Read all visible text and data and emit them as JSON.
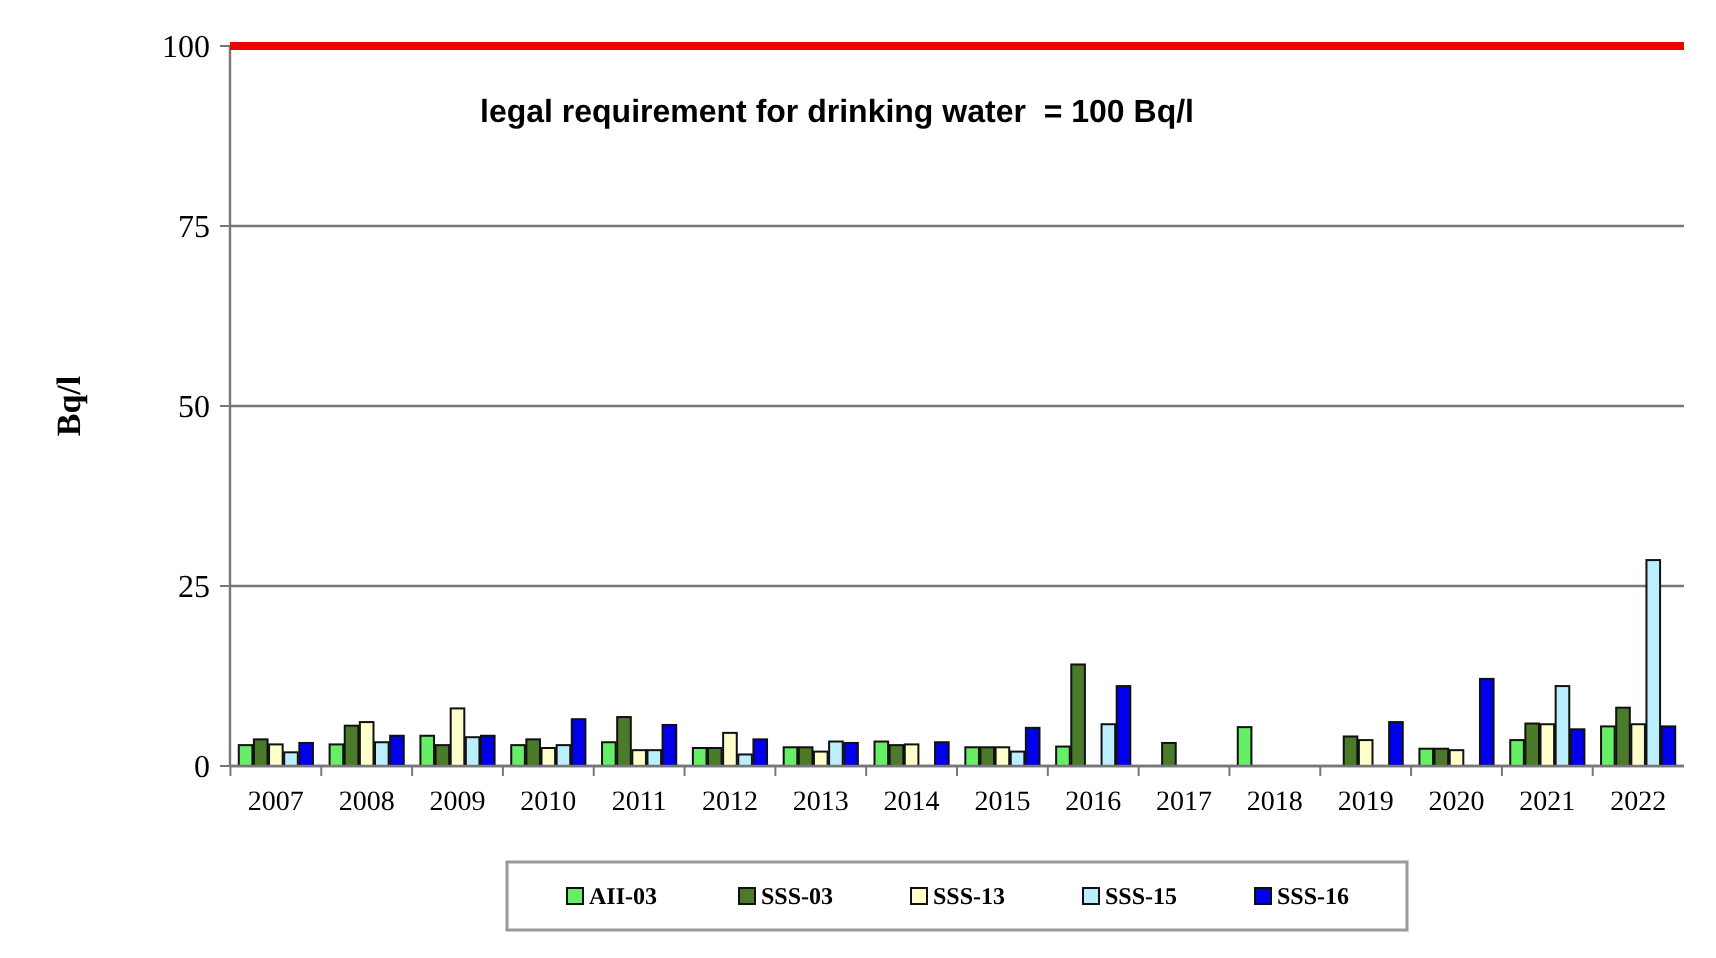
{
  "chart_data": {
    "type": "bar",
    "ylabel": "Bq/l",
    "categories": [
      "2007",
      "2008",
      "2009",
      "2010",
      "2011",
      "2012",
      "2013",
      "2014",
      "2015",
      "2016",
      "2017",
      "2018",
      "2019",
      "2020",
      "2021",
      "2022"
    ],
    "series": [
      {
        "name": "AII-03",
        "color": "#66ee66",
        "values": [
          2.9,
          3,
          4.2,
          2.9,
          3.3,
          2.5,
          2.6,
          3.4,
          2.6,
          2.7,
          null,
          5.4,
          null,
          2.4,
          3.6,
          5.5
        ]
      },
      {
        "name": "SSS-03",
        "color": "#4a7a2a",
        "values": [
          3.7,
          5.6,
          2.9,
          3.7,
          6.8,
          2.5,
          2.6,
          2.9,
          2.6,
          14.1,
          3.2,
          null,
          4.1,
          2.4,
          5.9,
          8.1
        ]
      },
      {
        "name": "SSS-13",
        "color": "#ffffcc",
        "values": [
          3,
          6.1,
          8,
          2.5,
          2.2,
          4.6,
          2,
          3,
          2.6,
          null,
          null,
          null,
          3.6,
          2.2,
          5.8,
          5.8
        ]
      },
      {
        "name": "SSS-15",
        "color": "#bbeeff",
        "values": [
          1.9,
          3.3,
          4,
          2.9,
          2.2,
          1.6,
          3.4,
          null,
          2,
          5.8,
          null,
          null,
          null,
          null,
          11.1,
          28.6
        ]
      },
      {
        "name": "SSS-16",
        "color": "#0000ee",
        "values": [
          3.2,
          4.2,
          4.2,
          6.5,
          5.7,
          3.7,
          3.2,
          3.3,
          5.3,
          11.1,
          null,
          null,
          6.1,
          12.1,
          5.1,
          5.5
        ]
      }
    ],
    "ylim": [
      0,
      100
    ],
    "yticks": [
      0,
      25,
      50,
      75,
      100
    ],
    "grid": "y",
    "legend": "bottom",
    "ref_lines": [
      {
        "axis": "y",
        "value": 100,
        "label": "legal requirement for drinking water  = 100 Bq/l",
        "color": "#ee0000"
      }
    ]
  }
}
